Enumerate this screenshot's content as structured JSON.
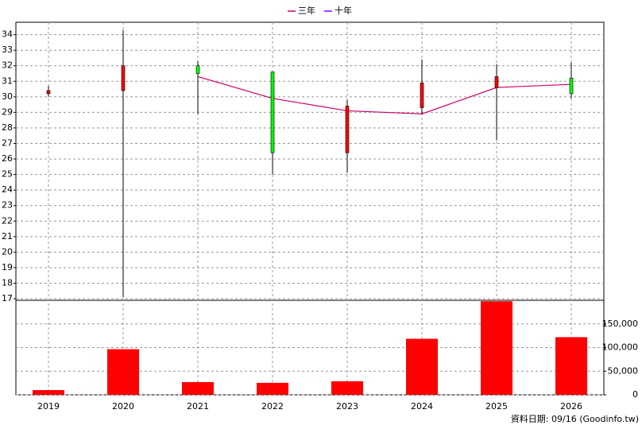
{
  "chart_data": {
    "type": "candlestick",
    "categories": [
      "2019",
      "2020",
      "2021",
      "2022",
      "2023",
      "2024",
      "2025",
      "2026"
    ],
    "open": [
      30.2,
      30.4,
      32.0,
      31.6,
      26.4,
      29.3,
      30.6,
      31.2
    ],
    "high": [
      30.7,
      34.3,
      32.3,
      31.6,
      29.8,
      32.4,
      32.1,
      32.2
    ],
    "low": [
      30.0,
      17.1,
      28.9,
      25.0,
      25.1,
      28.9,
      27.2,
      29.9
    ],
    "close": [
      30.4,
      32.0,
      31.5,
      26.4,
      29.4,
      30.9,
      31.3,
      30.2
    ],
    "up_color": "#ff0000",
    "down_color": "#00ff00",
    "series": [
      {
        "name": "三年",
        "color": "#cc0066",
        "values": [
          null,
          null,
          31.3,
          29.9,
          29.1,
          28.9,
          30.6,
          30.8
        ]
      },
      {
        "name": "十年",
        "color": "#8000ff",
        "values": [
          null,
          null,
          null,
          null,
          null,
          null,
          null,
          null
        ]
      }
    ],
    "volume": {
      "values": [
        10000,
        96600,
        27000,
        25400,
        28800,
        118600,
        198000,
        122000
      ],
      "color": "#ff0000",
      "axis": "y2"
    },
    "ylim": [
      16.9,
      34.8
    ],
    "yticks": [
      17,
      18,
      19,
      20,
      21,
      22,
      23,
      24,
      25,
      26,
      27,
      28,
      29,
      30,
      31,
      32,
      33,
      34
    ],
    "y2lim": [
      0,
      200000
    ],
    "y2ticks": [
      0,
      {
        "value": 50000,
        "label": "50,000"
      },
      {
        "value": 100000,
        "label": "100,000"
      },
      {
        "value": 150000,
        "label": "150,000"
      }
    ],
    "grid": true,
    "legend": "top",
    "footnote": "資料日期: 09/16 (Goodinfo.tw)"
  }
}
